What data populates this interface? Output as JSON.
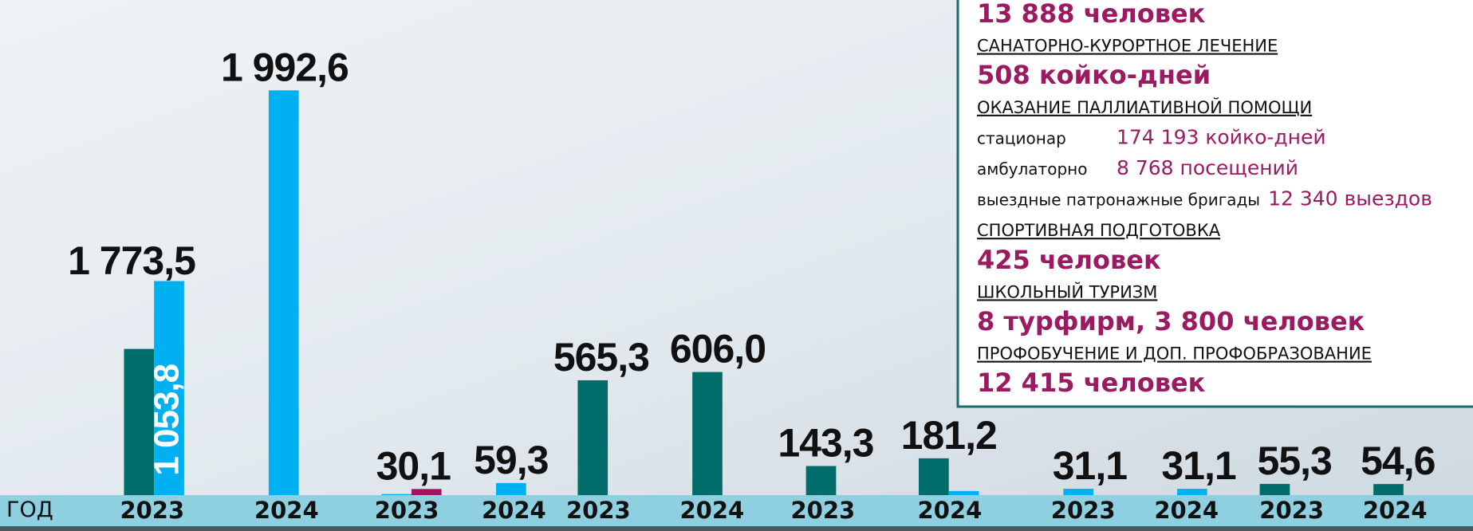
{
  "chart_data": {
    "type": "bar",
    "x_label": "ГОД",
    "annotations": [
      {
        "text": "1 773,5"
      }
    ],
    "categories": [
      "2023",
      "2024",
      "2023",
      "2024",
      "2023",
      "2024",
      "2023",
      "2024",
      "2023",
      "2024",
      "2023",
      "2024"
    ],
    "series": [
      {
        "color": "#006d6a",
        "values": [
          719.7,
          null,
          null,
          null,
          565.3,
          606.0,
          143.3,
          181.2,
          null,
          null,
          55.3,
          54.6
        ],
        "value_labels": [
          null,
          null,
          null,
          null,
          "565,3",
          "606,0",
          "143,3",
          "181,2",
          null,
          null,
          "55,3",
          "54,6"
        ]
      },
      {
        "color": "#00b0f0",
        "values": [
          1053.8,
          1992.6,
          5,
          59.3,
          null,
          null,
          null,
          20,
          31.1,
          31.1,
          null,
          null
        ],
        "value_labels": [
          "1 053,8",
          "1 992,6",
          null,
          "59,3",
          null,
          null,
          null,
          null,
          "31,1",
          "31,1",
          null,
          null
        ]
      },
      {
        "color": "#a0155f",
        "values": [
          null,
          null,
          30.1,
          null,
          null,
          null,
          null,
          null,
          null,
          null,
          null,
          null
        ],
        "value_labels": [
          null,
          null,
          "30,1",
          null,
          null,
          null,
          null,
          null,
          null,
          null,
          null,
          null
        ]
      }
    ],
    "ylim": [
      0,
      1992.6
    ]
  },
  "panel": {
    "lines": [
      {
        "kind": "value",
        "text": "13 888 человек"
      },
      {
        "kind": "heading",
        "text": "САНАТОРНО-КУРОРТНОЕ ЛЕЧЕНИЕ"
      },
      {
        "kind": "value",
        "text": "508 койко-дней"
      },
      {
        "kind": "heading",
        "text": "ОКАЗАНИЕ ПАЛЛИАТИВНОЙ ПОМОЩИ"
      },
      {
        "kind": "row",
        "text": "стационар",
        "value": "174 193  койко-дней"
      },
      {
        "kind": "row",
        "text": "амбулаторно",
        "value": "8 768 посещений"
      },
      {
        "kind": "row",
        "text": "выездные патронажные бригады",
        "value": "12 340 выездов"
      },
      {
        "kind": "heading",
        "text": "СПОРТИВНАЯ ПОДГОТОВКА"
      },
      {
        "kind": "value",
        "text": "425 человек"
      },
      {
        "kind": "heading",
        "text": "ШКОЛЬНЫЙ ТУРИЗМ"
      },
      {
        "kind": "value",
        "text": "8 турфирм, 3 800 человек"
      },
      {
        "kind": "heading",
        "text": "ПРОФОБУЧЕНИЕ И ДОП. ПРОФОБРАЗОВАНИЕ"
      },
      {
        "kind": "value",
        "text": "12 415 человек"
      }
    ]
  }
}
